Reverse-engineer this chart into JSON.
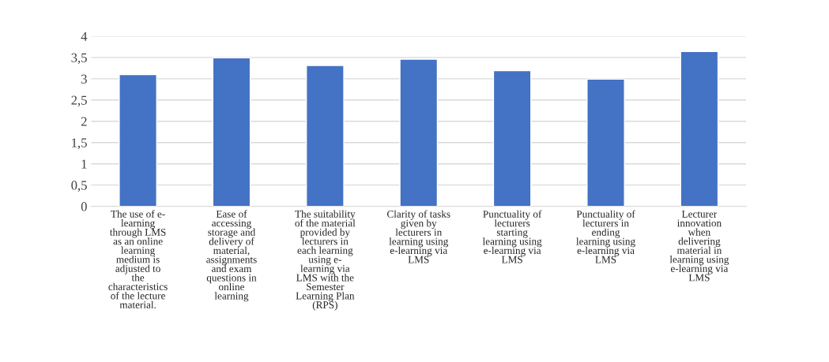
{
  "chart_data": {
    "type": "bar",
    "categories": [
      "The use of e-\nlearning\nthrough LMS\nas an online\nlearning\nmedium is\nadjusted to\nthe\ncharacteristics\nof the lecture\nmaterial.",
      "Ease of\naccessing\nstorage and\ndelivery of\nmaterial,\nassignments\nand exam\nquestions in\nonline\nlearning",
      "The suitability\nof the material\nprovided by\nlecturers in\neach learning\nusing e-\nlearning via\nLMS with the\nSemester\nLearning Plan\n(RPS)",
      "Clarity of tasks\ngiven by\nlecturers in\nlearning using\ne-learning via\nLMS",
      "Punctuality of\nlecturers\nstarting\nlearning using\ne-learning via\nLMS",
      "Punctuality of\nlecturers in\nending\nlearning using\ne-learning via\nLMS",
      "Lecturer\ninnovation\nwhen\ndelivering\nmaterial in\nlearning using\ne-learning via\nLMS"
    ],
    "values": [
      3.1,
      3.49,
      3.31,
      3.46,
      3.19,
      2.99,
      3.64
    ],
    "color": "#4472c4",
    "ylim": [
      0,
      4
    ],
    "yticks": [
      0,
      {
        "value": 0.5,
        "label": "0,5"
      },
      1,
      {
        "value": 1.5,
        "label": "1,5"
      },
      2,
      {
        "value": 2.5,
        "label": "2,5"
      },
      3,
      {
        "value": 3.5,
        "label": "3,5"
      },
      4
    ],
    "grid": "y"
  }
}
